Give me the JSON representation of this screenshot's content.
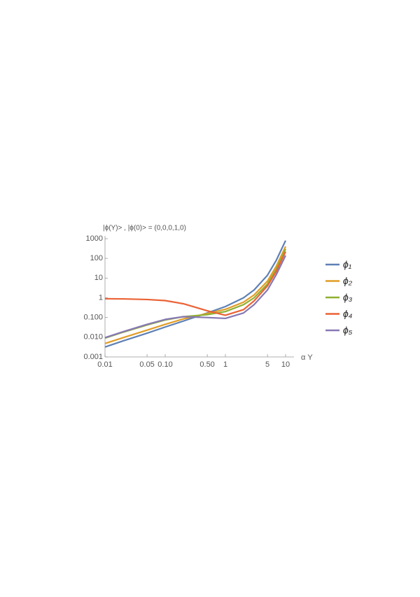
{
  "chart_data": {
    "type": "line",
    "title": "|ϕ(Y)> , |ϕ(0)> = (0,0,0,1,0)",
    "x_label": "α Y",
    "log_x": true,
    "log_y": true,
    "xlim": [
      0.01,
      10
    ],
    "ylim": [
      0.001,
      1000
    ],
    "xticks": [
      0.01,
      0.05,
      {
        "value": 0.1,
        "label": "0.10"
      },
      {
        "value": 0.5,
        "label": "0.50"
      },
      1,
      5,
      10
    ],
    "yticks": [
      0.001,
      {
        "value": 0.01,
        "label": "0.010"
      },
      {
        "value": 0.1,
        "label": "0.100"
      },
      1,
      10,
      100,
      1000
    ],
    "x": [
      0.01,
      0.02,
      0.05,
      0.1,
      0.2,
      0.5,
      1,
      2,
      3,
      5,
      7,
      10
    ],
    "series": [
      {
        "name": "ϕ₁",
        "color": "#5e81b5",
        "values": [
          0.0032,
          0.0065,
          0.016,
          0.033,
          0.066,
          0.17,
          0.36,
          1.0,
          2.5,
          14,
          80,
          800
        ]
      },
      {
        "name": "ϕ₂",
        "color": "#e19c24",
        "values": [
          0.0048,
          0.0095,
          0.023,
          0.045,
          0.085,
          0.16,
          0.26,
          0.6,
          1.4,
          7,
          40,
          400
        ]
      },
      {
        "name": "ϕ₃",
        "color": "#8fb032",
        "values": [
          0.009,
          0.018,
          0.042,
          0.075,
          0.11,
          0.14,
          0.2,
          0.45,
          1.0,
          5,
          28,
          300
        ]
      },
      {
        "name": "ϕ₄",
        "color": "#eb6235",
        "values": [
          0.9,
          0.88,
          0.82,
          0.72,
          0.5,
          0.22,
          0.13,
          0.25,
          0.7,
          4,
          22,
          220
        ]
      },
      {
        "name": "ϕ₅",
        "color": "#8778b3",
        "values": [
          0.0095,
          0.019,
          0.045,
          0.08,
          0.11,
          0.1,
          0.09,
          0.17,
          0.45,
          2.5,
          15,
          140
        ]
      }
    ],
    "legend": "right"
  }
}
